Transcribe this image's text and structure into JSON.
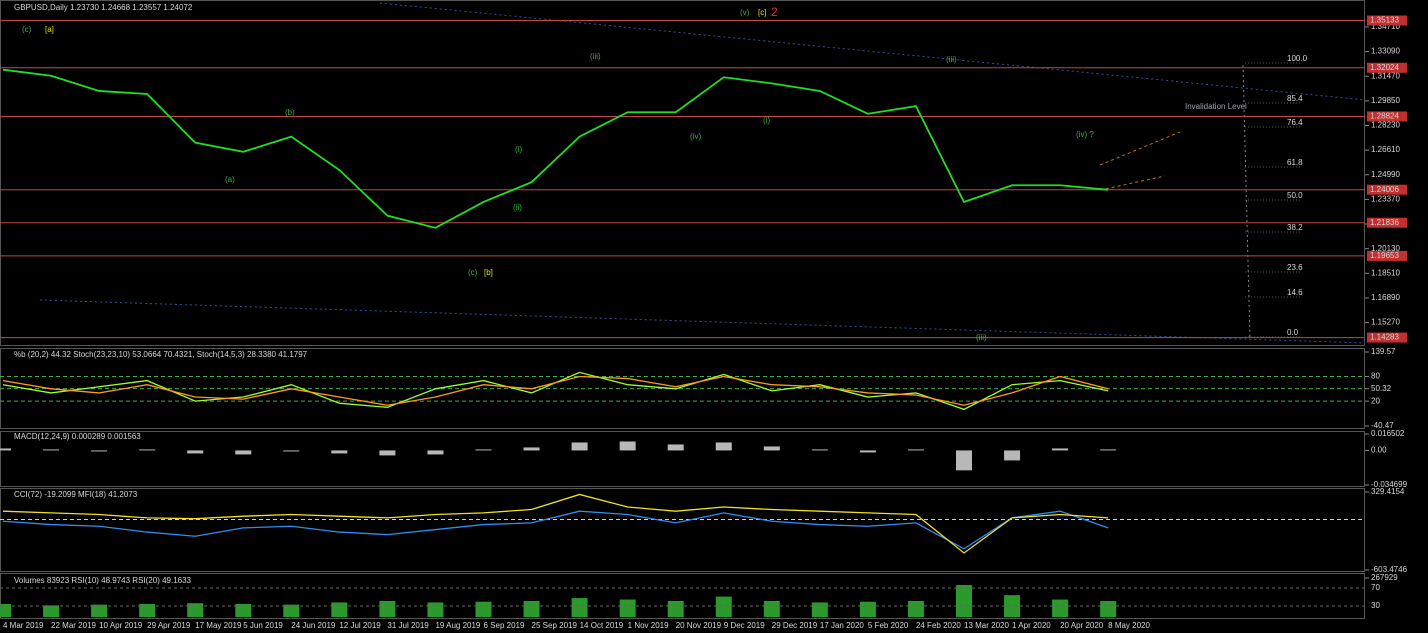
{
  "chart_data": [
    {
      "type": "line",
      "title": "GBPUSD,Daily  1.23730 1.24668 1.23557 1.24072",
      "color": "#22dd22",
      "categories": [
        "4 Mar 2019",
        "22 Mar 2019",
        "10 Apr 2019",
        "29 Apr 2019",
        "17 May 2019",
        "5 Jun 2019",
        "24 Jun 2019",
        "12 Jul 2019",
        "31 Jul 2019",
        "19 Aug 2019",
        "6 Sep 2019",
        "25 Sep 2019",
        "14 Oct 2019",
        "1 Nov 2019",
        "20 Nov 2019",
        "9 Dec 2019",
        "29 Dec 2019",
        "17 Jan 2020",
        "5 Feb 2020",
        "24 Feb 2020",
        "13 Mar 2020",
        "1 Apr 2020",
        "20 Apr 2020",
        "8 May 2020"
      ],
      "values": [
        1.319,
        1.315,
        1.305,
        1.303,
        1.271,
        1.265,
        1.275,
        1.253,
        1.223,
        1.215,
        1.232,
        1.245,
        1.275,
        1.291,
        1.291,
        1.314,
        1.31,
        1.305,
        1.29,
        1.295,
        1.232,
        1.243,
        1.243,
        1.24
      ],
      "ylim": [
        1.1386,
        1.3635
      ],
      "yticks": [
        {
          "value": 1.3471,
          "label": "1.34710"
        },
        {
          "value": 1.3309,
          "label": "1.33090"
        },
        {
          "value": 1.3147,
          "label": "1.31470"
        },
        {
          "value": 1.2985,
          "label": "1.29850"
        },
        {
          "value": 1.2823,
          "label": "1.28230"
        },
        {
          "value": 1.2661,
          "label": "1.26610"
        },
        {
          "value": 1.2499,
          "label": "1.24990"
        },
        {
          "value": 1.2337,
          "label": "1.23370"
        },
        {
          "value": 1.2175,
          "label": "1.21750"
        },
        {
          "value": 1.2013,
          "label": "1.20130"
        },
        {
          "value": 1.1851,
          "label": "1.18510"
        },
        {
          "value": 1.1689,
          "label": "1.16890"
        },
        {
          "value": 1.1527,
          "label": "1.15270"
        }
      ],
      "levels": [
        1.35133,
        1.32024,
        1.28824,
        1.24006,
        1.21836,
        1.19653,
        1.14283
      ],
      "level_color": "#c04848",
      "annotations": [
        {
          "text": "(c)",
          "color": "#3cb043"
        },
        {
          "text": "[a]",
          "color": "#e0e000"
        },
        {
          "text": "(a)",
          "color": "#3cb043"
        },
        {
          "text": "(b)",
          "color": "#3cb043"
        },
        {
          "text": "(c)",
          "color": "#3cb043"
        },
        {
          "text": "[b]",
          "color": "#e0e000"
        },
        {
          "text": "(i)",
          "color": "#3cb043"
        },
        {
          "text": "(ii)",
          "color": "#3cb043"
        },
        {
          "text": "(iii)",
          "color": "#3cb043"
        },
        {
          "text": "(iv)",
          "color": "#3cb043"
        },
        {
          "text": "(v)",
          "color": "#3cb043"
        },
        {
          "text": "[c]",
          "color": "#e0e000"
        },
        {
          "text": "2",
          "color": "#e03030"
        },
        {
          "text": "(i)",
          "color": "#3cb043"
        },
        {
          "text": "(iii)",
          "color": "#3cb043"
        },
        {
          "text": "(iii)",
          "color": "#3cb043"
        },
        {
          "text": "(iv) ?",
          "color": "#3cb043"
        },
        {
          "text": "Invalidation Level",
          "color": "#9aa0a8"
        }
      ],
      "fib_labels": [
        "100.0",
        "85.4",
        "76.4",
        "61.8",
        "50.0",
        "38.2",
        "23.6",
        "14.6",
        "0.0"
      ]
    },
    {
      "type": "line",
      "title": "%b (20,2) 44.32  Stoch(23,23,10) 53.0664 70.4321,  Stoch(14,5,3) 28.3380 41.1797",
      "series": [
        {
          "color": "#9aff2a",
          "values": [
            60,
            40,
            55,
            70,
            20,
            30,
            60,
            15,
            5,
            50,
            70,
            40,
            90,
            60,
            50,
            85,
            45,
            60,
            30,
            40,
            0,
            60,
            70,
            45
          ]
        },
        {
          "color": "#ff9a1a",
          "values": [
            70,
            50,
            40,
            60,
            30,
            25,
            50,
            30,
            10,
            30,
            60,
            50,
            80,
            75,
            55,
            80,
            60,
            55,
            40,
            35,
            10,
            40,
            80,
            50
          ]
        }
      ],
      "ylim": [
        -40.47,
        139.57
      ],
      "yticks": [
        139.57,
        80,
        50.32,
        20,
        -40.47
      ],
      "levels": [
        80,
        50.32,
        20
      ],
      "level_color": "#3cb043"
    },
    {
      "type": "bar",
      "title": "MACD(12,24,9) 0.000289 0.001563",
      "color": "#b8b8b8",
      "values": [
        0.002,
        0.001,
        -0.001,
        0.001,
        -0.003,
        -0.004,
        -0.001,
        -0.003,
        -0.005,
        -0.004,
        0.001,
        0.003,
        0.008,
        0.009,
        0.006,
        0.008,
        0.004,
        0.001,
        -0.002,
        0.001,
        -0.02,
        -0.01,
        0.002,
        0.001
      ],
      "ylim": [
        -0.034699,
        0.016502
      ],
      "yticks": [
        0.016502,
        {
          "value": 0,
          "label": "0.00"
        },
        -0.034699
      ]
    },
    {
      "type": "line",
      "title": "CCI(72) -19.2099  MFI(18) 41.2073",
      "series": [
        {
          "color": "#2f8cf0",
          "values": [
            -20,
            -60,
            -80,
            -150,
            -200,
            -100,
            -80,
            -150,
            -180,
            -120,
            -60,
            -40,
            100,
            60,
            -40,
            80,
            -20,
            -60,
            -80,
            -40,
            -350,
            20,
            100,
            -100
          ]
        },
        {
          "color": "#f0e020",
          "values": [
            100,
            80,
            60,
            20,
            10,
            40,
            60,
            40,
            20,
            60,
            80,
            120,
            300,
            150,
            100,
            150,
            120,
            100,
            80,
            60,
            -400,
            20,
            60,
            20
          ]
        }
      ],
      "ylim": [
        -603.4746,
        329.4154
      ],
      "yticks": [
        329.4154,
        -603.4746
      ],
      "levels": [
        0
      ],
      "level_color": "#d0d0d0"
    },
    {
      "type": "bar",
      "title": "Volumes 83923  RSI(10) 48.9743  RSI(20) 49.1633",
      "color": "#2a9a2a",
      "values": [
        90000,
        80000,
        85000,
        90000,
        95000,
        90000,
        85000,
        100000,
        110000,
        100000,
        105000,
        110000,
        130000,
        120000,
        110000,
        140000,
        110000,
        100000,
        105000,
        110000,
        220000,
        150000,
        120000,
        110000
      ],
      "ylim": [
        0,
        267929
      ],
      "yticks": [
        267929
      ],
      "rsi_levels": [
        70,
        30
      ]
    }
  ]
}
